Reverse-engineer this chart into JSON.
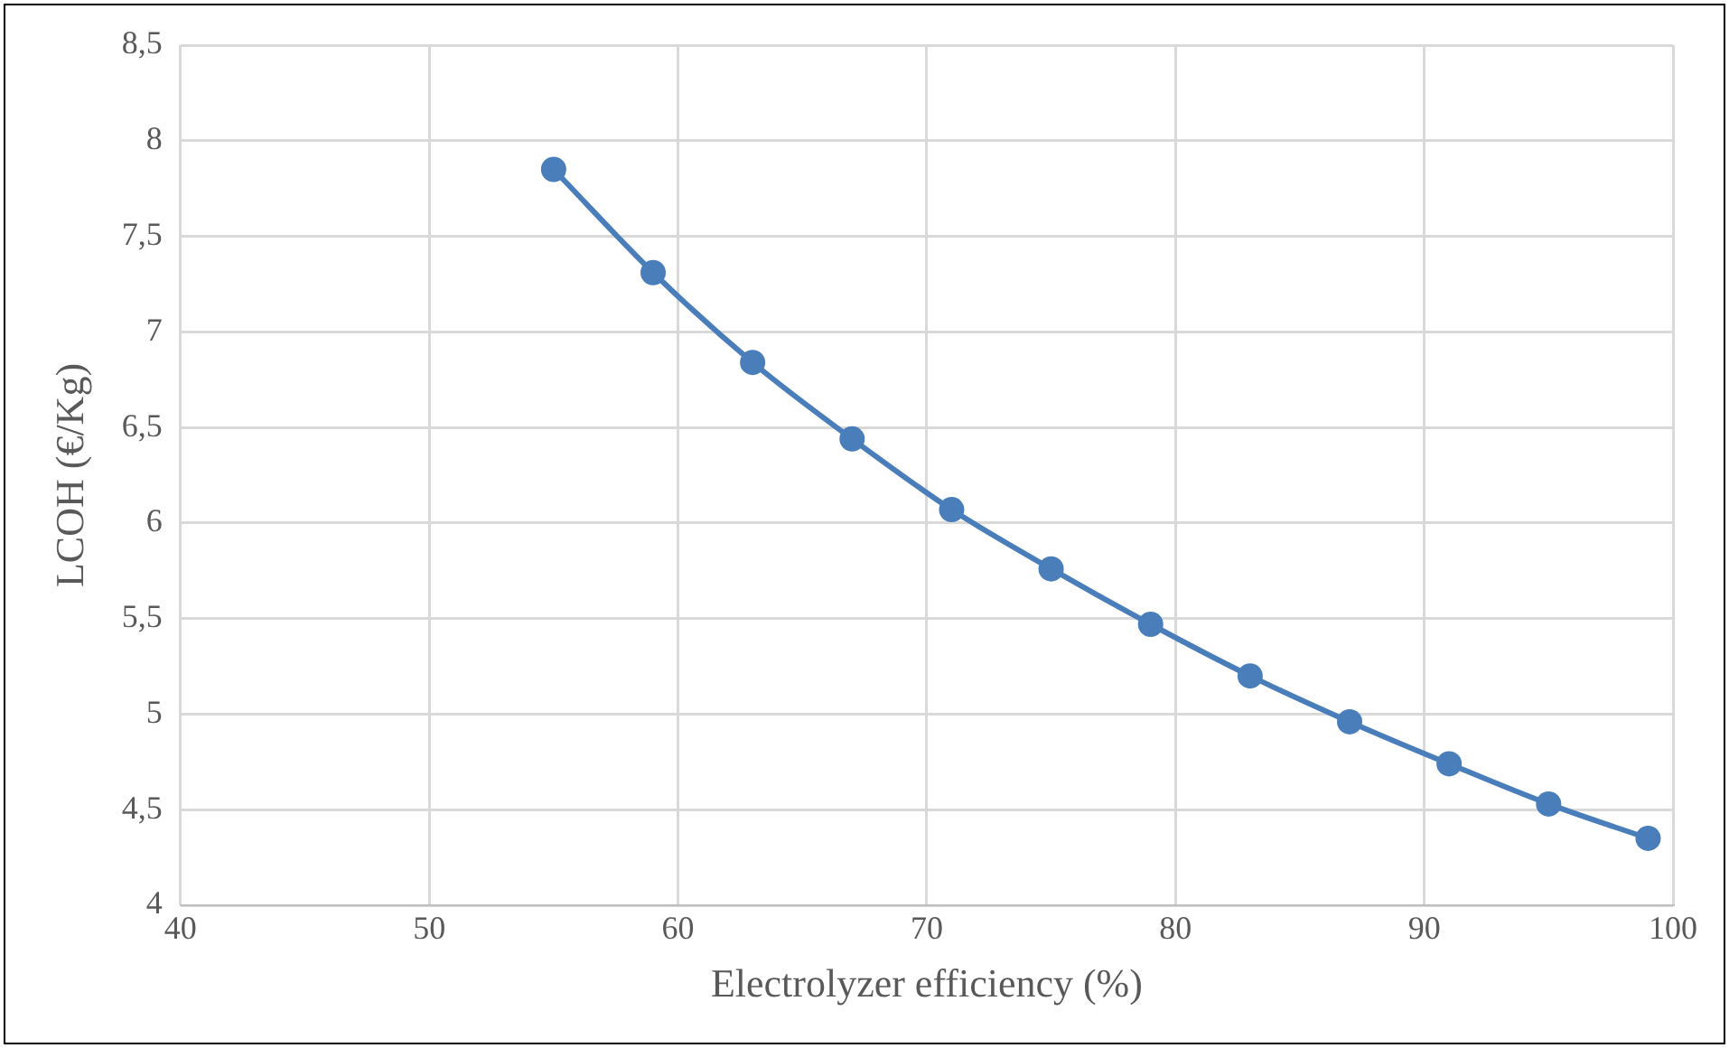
{
  "chart_data": {
    "type": "line",
    "xlabel": "Electrolyzer efficiency (%)",
    "ylabel": "LCOH (€/Kg)",
    "x": [
      55,
      59,
      63,
      67,
      71,
      75,
      79,
      83,
      87,
      91,
      95,
      99
    ],
    "series": [
      {
        "color": "#4a7ebb",
        "values": [
          7.85,
          7.31,
          6.84,
          6.44,
          6.07,
          5.76,
          5.47,
          5.2,
          4.96,
          4.74,
          4.53,
          4.35
        ]
      }
    ],
    "xlim": [
      40,
      100
    ],
    "xticks": [
      40,
      50,
      60,
      70,
      80,
      90,
      100
    ],
    "ylim": [
      4,
      8.5
    ],
    "yticks": [
      4,
      {
        "value": 4.5,
        "label": "4,5"
      },
      5,
      {
        "value": 5.5,
        "label": "5,5"
      },
      6,
      {
        "value": 6.5,
        "label": "6,5"
      },
      7,
      {
        "value": 7.5,
        "label": "7,5"
      },
      8,
      {
        "value": 8.5,
        "label": "8,5"
      }
    ],
    "grid": true,
    "legend": false,
    "marker": "circle",
    "line_style": "solid"
  }
}
